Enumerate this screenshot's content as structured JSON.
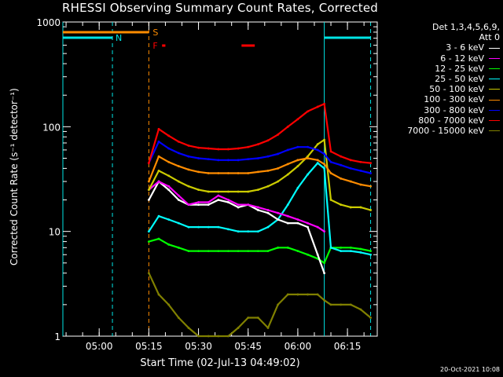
{
  "title": "RHESSI Observing Summary Count Rates, Corrected",
  "footer_timestamp": "20-Oct-2021 10:08",
  "legend": {
    "header_line1": "Det 1,3,4,5,6,9,",
    "header_line2": "Att 0"
  },
  "flags": {
    "saa_label": "S",
    "night_label": "N",
    "flare_label": "F"
  },
  "colors": {
    "background": "#000000",
    "axes": "#ffffff",
    "saa": "#ff8c00",
    "night": "#00e5e5",
    "flare": "#ff0000",
    "attenuator": "#ff8c00"
  },
  "chart_data": {
    "type": "line",
    "title": "RHESSI Observing Summary Count Rates, Corrected",
    "xlabel": "Start Time (02-Jul-13 04:49:02)",
    "ylabel": "Corrected Count Rate (s⁻¹ detector⁻¹)",
    "yscale": "log",
    "xlim": [
      "04:49:02",
      "06:24"
    ],
    "ylim": [
      1,
      1000
    ],
    "x_ticks": [
      "05:00",
      "05:15",
      "05:30",
      "05:45",
      "06:00",
      "06:15"
    ],
    "y_ticks": [
      {
        "value": 1,
        "label": "1"
      },
      {
        "value": 10,
        "label": "10"
      },
      {
        "value": 100,
        "label": "100"
      },
      {
        "value": 1000,
        "label": "1000"
      }
    ],
    "x": [
      "05:15",
      "05:18",
      "05:21",
      "05:24",
      "05:27",
      "05:30",
      "05:33",
      "05:36",
      "05:39",
      "05:42",
      "05:45",
      "05:48",
      "05:51",
      "05:54",
      "05:57",
      "06:00",
      "06:03",
      "06:06",
      "06:08",
      "06:10",
      "06:13",
      "06:16",
      "06:19",
      "06:22"
    ],
    "series": [
      {
        "name": "3 - 6 keV",
        "color": "#ffffff",
        "values": [
          20,
          30,
          25,
          20,
          18,
          18,
          18,
          20,
          19,
          17,
          18,
          16,
          15,
          13,
          12,
          12,
          11,
          6,
          4,
          null,
          null,
          null,
          null,
          null
        ]
      },
      {
        "name": "6 - 12 keV",
        "color": "#ff00ff",
        "values": [
          25,
          30,
          27,
          22,
          18,
          19,
          19,
          22,
          20,
          18,
          18,
          17,
          16,
          15,
          14,
          13,
          12,
          11,
          10,
          null,
          null,
          null,
          null,
          null
        ]
      },
      {
        "name": "12 - 25 keV",
        "color": "#00ff00",
        "values": [
          8,
          8.5,
          7.5,
          7,
          6.5,
          6.5,
          6.5,
          6.5,
          6.5,
          6.5,
          6.5,
          6.5,
          6.5,
          7,
          7,
          6.5,
          6,
          5.5,
          5,
          7,
          7,
          7,
          6.8,
          6.5
        ]
      },
      {
        "name": "25 - 50 keV",
        "color": "#00ffff",
        "values": [
          10,
          14,
          13,
          12,
          11,
          11,
          11,
          11,
          10.5,
          10,
          10,
          10,
          11,
          13,
          18,
          26,
          35,
          45,
          40,
          7,
          6.5,
          6.5,
          6.3,
          6
        ]
      },
      {
        "name": "50 - 100 keV",
        "color": "#cccc00",
        "values": [
          25,
          38,
          34,
          30,
          27,
          25,
          24,
          24,
          24,
          24,
          24,
          25,
          27,
          30,
          35,
          42,
          52,
          68,
          75,
          20,
          18,
          17,
          17,
          16
        ]
      },
      {
        "name": "100 - 300 keV",
        "color": "#ff8c00",
        "values": [
          30,
          52,
          46,
          42,
          39,
          37,
          36,
          36,
          36,
          36,
          36,
          37,
          38,
          40,
          44,
          48,
          50,
          48,
          44,
          36,
          32,
          30,
          28,
          27
        ]
      },
      {
        "name": "300 - 800 keV",
        "color": "#0000ff",
        "values": [
          45,
          72,
          62,
          56,
          52,
          50,
          49,
          48,
          48,
          48,
          49,
          50,
          52,
          55,
          60,
          64,
          64,
          60,
          55,
          46,
          43,
          40,
          38,
          36
        ]
      },
      {
        "name": "800 - 7000 keV",
        "color": "#ff0000",
        "values": [
          45,
          95,
          82,
          72,
          66,
          63,
          62,
          61,
          61,
          62,
          64,
          68,
          74,
          84,
          100,
          118,
          140,
          155,
          165,
          58,
          52,
          48,
          46,
          45
        ]
      },
      {
        "name": "7000 - 15000 keV",
        "color": "#808000",
        "values": [
          4,
          2.5,
          2,
          1.5,
          1.2,
          1,
          1,
          1,
          1,
          1.2,
          1.5,
          1.5,
          1.2,
          2,
          2.5,
          2.5,
          2.5,
          2.5,
          2.2,
          2,
          2,
          2,
          1.8,
          1.5
        ]
      }
    ],
    "saa_intervals": [
      [
        "04:49:02",
        "05:15"
      ]
    ],
    "night_intervals": [
      [
        "04:49:02",
        "05:04"
      ],
      [
        "06:08",
        "06:22"
      ]
    ],
    "flare_intervals": [
      [
        "05:19",
        "05:20"
      ],
      [
        "05:43",
        "05:47"
      ]
    ],
    "vertical_markers": [
      {
        "time": "04:49:02",
        "style": "solid",
        "color": "#00e5e5"
      },
      {
        "time": "05:04",
        "style": "dashed",
        "color": "#00e5e5"
      },
      {
        "time": "05:15",
        "style": "dashed",
        "color": "#ff8c00"
      },
      {
        "time": "06:08",
        "style": "solid",
        "color": "#00e5e5"
      },
      {
        "time": "06:22",
        "style": "dashed",
        "color": "#00e5e5"
      }
    ],
    "grid": false,
    "legend_position": "right"
  }
}
